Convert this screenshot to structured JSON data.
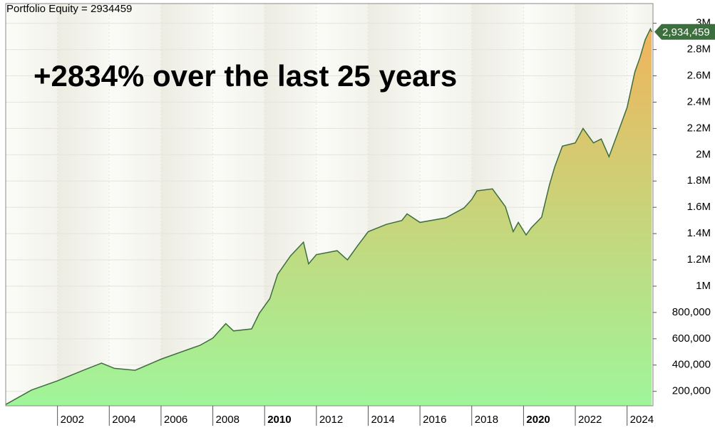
{
  "chart_data": {
    "type": "area",
    "title": "Portfolio Equity = 2934459",
    "annotation": "+2834% over the last 25 years",
    "x": [
      2000.0,
      2001.0,
      2002.0,
      2003.0,
      2003.7,
      2004.2,
      2005.0,
      2006.0,
      2007.0,
      2007.5,
      2008.0,
      2008.5,
      2008.8,
      2009.5,
      2009.8,
      2010.2,
      2010.5,
      2011.0,
      2011.5,
      2011.7,
      2012.0,
      2012.8,
      2013.2,
      2013.6,
      2014.0,
      2014.7,
      2015.3,
      2015.5,
      2016.0,
      2017.0,
      2017.7,
      2018.0,
      2018.2,
      2018.8,
      2019.3,
      2019.6,
      2019.8,
      2020.1,
      2020.3,
      2020.7,
      2021.0,
      2021.2,
      2021.5,
      2022.0,
      2022.3,
      2022.7,
      2023.0,
      2023.3,
      2023.6,
      2024.0,
      2024.3,
      2024.5,
      2024.7,
      2024.9,
      2024.95
    ],
    "values": [
      100000,
      210000,
      280000,
      360000,
      415000,
      375000,
      360000,
      445000,
      515000,
      550000,
      605000,
      715000,
      660000,
      675000,
      795000,
      905000,
      1090000,
      1230000,
      1335000,
      1170000,
      1240000,
      1270000,
      1200000,
      1310000,
      1415000,
      1470000,
      1500000,
      1550000,
      1485000,
      1520000,
      1595000,
      1660000,
      1725000,
      1740000,
      1605000,
      1415000,
      1485000,
      1390000,
      1445000,
      1525000,
      1770000,
      1905000,
      2065000,
      2090000,
      2200000,
      2090000,
      2120000,
      1985000,
      2145000,
      2360000,
      2630000,
      2740000,
      2875000,
      2957000,
      2934459
    ],
    "last_value_label": "2,934,459",
    "color": "#3d6e3d",
    "fill_colors": [
      "#f0b45c",
      "#9ff59a"
    ],
    "xlim": [
      2000,
      2025
    ],
    "xticks": [
      2002,
      2004,
      2006,
      2008,
      2010,
      2012,
      2014,
      2016,
      2018,
      2020,
      2022,
      2024
    ],
    "bold_xticks": [
      2010,
      2020
    ],
    "ylim": [
      90000,
      3150000
    ],
    "yticks": [
      {
        "value": 200000,
        "label": "200,000"
      },
      {
        "value": 400000,
        "label": "400,000"
      },
      {
        "value": 600000,
        "label": "600,000"
      },
      {
        "value": 800000,
        "label": "800,000"
      },
      {
        "value": 1000000,
        "label": "1M"
      },
      {
        "value": 1200000,
        "label": "1.2M"
      },
      {
        "value": 1400000,
        "label": "1.4M"
      },
      {
        "value": 1600000,
        "label": "1.6M"
      },
      {
        "value": 1800000,
        "label": "1.8M"
      },
      {
        "value": 2000000,
        "label": "2M"
      },
      {
        "value": 2200000,
        "label": "2.2M"
      },
      {
        "value": 2400000,
        "label": "2.4M"
      },
      {
        "value": 2600000,
        "label": "2.6M"
      },
      {
        "value": 2800000,
        "label": "2.8M"
      },
      {
        "value": 3000000,
        "label": "3M"
      }
    ],
    "grid": true
  }
}
